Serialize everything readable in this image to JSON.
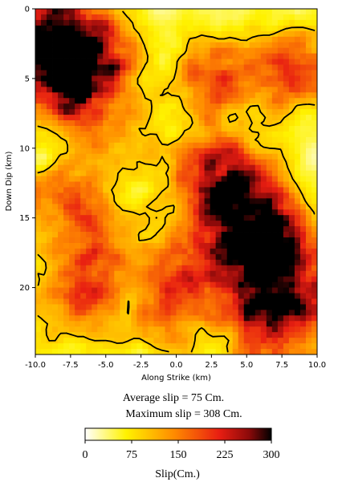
{
  "chart_data": {
    "type": "heatmap",
    "xlabel": "Along Strike (km)",
    "ylabel": "Down Dip (km)",
    "xlim": [
      -10.0,
      10.0
    ],
    "ylim": [
      0,
      24.8
    ],
    "y_inverted": true,
    "x_ticks": [
      "-10.0",
      "-7.5",
      "-5.0",
      "-2.5",
      "0.0",
      "2.5",
      "5.0",
      "7.5",
      "10.0"
    ],
    "y_ticks": [
      "0",
      "5",
      "10",
      "15",
      "20"
    ],
    "colormap": [
      "#ffffff",
      "#fff200",
      "#ff8a00",
      "#e81e12",
      "#8c0a0a",
      "#000000"
    ],
    "grid": false,
    "contour_color": "#000000",
    "cell_size_km": 0.4,
    "slip_peaks": [
      {
        "x": -7.8,
        "y": 4.8,
        "slip": 300
      },
      {
        "x": -9.0,
        "y": 2.0,
        "slip": 230
      },
      {
        "x": -5.6,
        "y": 3.0,
        "slip": 190
      },
      {
        "x": 2.8,
        "y": 4.8,
        "slip": 185
      },
      {
        "x": 8.5,
        "y": 4.5,
        "slip": 200
      },
      {
        "x": 2.4,
        "y": 11.8,
        "slip": 200
      },
      {
        "x": 5.0,
        "y": 13.5,
        "slip": 210
      },
      {
        "x": 7.0,
        "y": 17.2,
        "slip": 240
      },
      {
        "x": 4.2,
        "y": 17.5,
        "slip": 160
      },
      {
        "x": 8.0,
        "y": 21.0,
        "slip": 200
      },
      {
        "x": -8.0,
        "y": 14.0,
        "slip": 170
      },
      {
        "x": -7.0,
        "y": 21.0,
        "slip": 170
      },
      {
        "x": -0.8,
        "y": 22.0,
        "slip": 140
      },
      {
        "x": 1.0,
        "y": 18.5,
        "slip": 150
      },
      {
        "x": -4.5,
        "y": 9.0,
        "slip": 120
      },
      {
        "x": 6.2,
        "y": 23.0,
        "slip": 170
      },
      {
        "x": -5.2,
        "y": 17.0,
        "slip": 130
      }
    ],
    "summary": {
      "average_slip": "Average slip = 75 Cm.",
      "maximum_slip": "Maximum slip = 308 Cm."
    },
    "colorbar": {
      "label": "Slip(Cm.)",
      "range": [
        0,
        300
      ],
      "ticks": [
        "0",
        "75",
        "150",
        "225",
        "300"
      ]
    }
  }
}
